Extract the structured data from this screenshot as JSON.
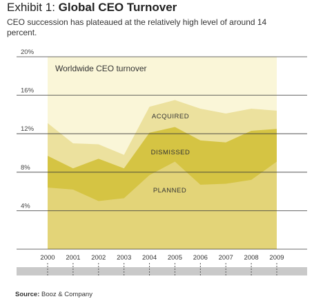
{
  "title": {
    "prefix": "Exhibit 1:",
    "bold": "Global CEO Turnover"
  },
  "subtitle": "CEO succession has plateaued at the relatively high level of around 14 percent.",
  "source": {
    "label": "Source:",
    "text": "Booz & Company"
  },
  "chart_data": {
    "type": "area",
    "stacked": true,
    "title": "Worldwide CEO turnover",
    "x": [
      "2000",
      "2001",
      "2002",
      "2003",
      "2004",
      "2005",
      "2006",
      "2007",
      "2008",
      "2009"
    ],
    "series": [
      {
        "name": "PLANNED",
        "values": [
          6.4,
          6.2,
          5.0,
          5.3,
          7.7,
          9.1,
          6.7,
          6.8,
          7.2,
          9.1
        ]
      },
      {
        "name": "DISMISSED",
        "values": [
          3.3,
          2.2,
          4.4,
          3.1,
          4.4,
          3.6,
          4.6,
          4.3,
          5.1,
          3.4
        ]
      },
      {
        "name": "ACQUIRED",
        "values": [
          3.4,
          2.6,
          1.5,
          1.4,
          2.7,
          2.8,
          3.3,
          3.0,
          2.3,
          1.9
        ]
      }
    ],
    "yticks": [
      "4%",
      "8%",
      "12%",
      "16%",
      "20%"
    ],
    "ylim": [
      0,
      20
    ],
    "grid": true,
    "colors": {
      "background": "#faf6d8",
      "planned": "#e3d478",
      "dismissed": "#d5c443",
      "acquired": "#ece19e",
      "gridline": "#3a3a3a",
      "base_bar": "#c9c9c9"
    }
  }
}
